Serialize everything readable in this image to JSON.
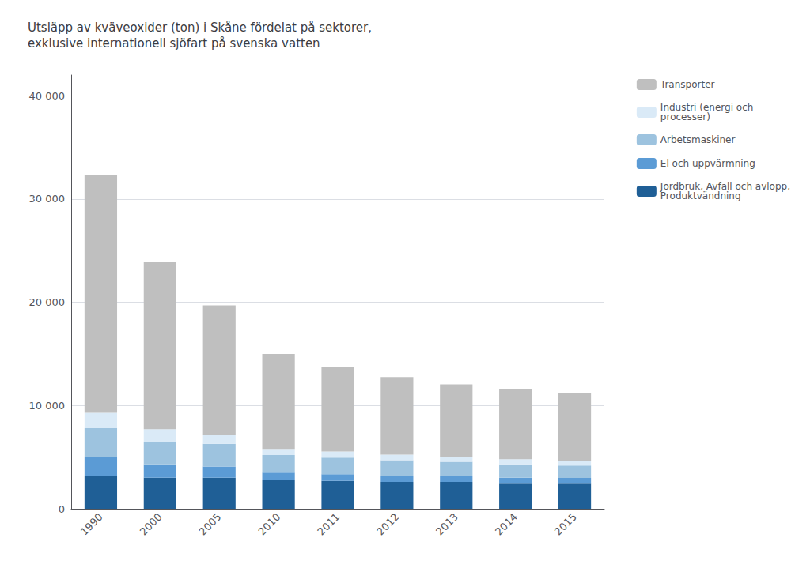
{
  "chart_data": {
    "type": "bar",
    "title": "Utsläpp av kväveoxider (ton) i Skåne fördelat på sektorer,\nexklusive internationell sjöfart på svenska vatten",
    "categories": [
      "1990",
      "2000",
      "2005",
      "2010",
      "2011",
      "2012",
      "2013",
      "2014",
      "2015"
    ],
    "series": [
      {
        "name": "Jordbruk, Avfall och avlopp,\nProduktvändning",
        "color": "#1f5f96",
        "values": [
          3200,
          3000,
          3000,
          2800,
          2700,
          2600,
          2600,
          2500,
          2500
        ]
      },
      {
        "name": "El och uppvärmning",
        "color": "#5b9bd5",
        "values": [
          1800,
          1300,
          1100,
          700,
          650,
          600,
          550,
          500,
          480
        ]
      },
      {
        "name": "Arbetsmaskiner",
        "color": "#9dc3df",
        "values": [
          2800,
          2200,
          2200,
          1700,
          1600,
          1500,
          1400,
          1300,
          1200
        ]
      },
      {
        "name": "Industri (energi och\nprocesser)",
        "color": "#daeaf7",
        "values": [
          1500,
          1200,
          900,
          600,
          600,
          550,
          500,
          500,
          480
        ]
      },
      {
        "name": "Transporter",
        "color": "#bfbfbf",
        "values": [
          23000,
          16200,
          12500,
          9200,
          8200,
          7500,
          7000,
          6800,
          6500
        ]
      }
    ],
    "stacked": true,
    "ylim": [
      0,
      42000
    ],
    "yticks": [
      0,
      {
        "value": 10000,
        "label": "10 000"
      },
      {
        "value": 20000,
        "label": "20 000"
      },
      {
        "value": 30000,
        "label": "30 000"
      },
      {
        "value": 40000,
        "label": "40 000"
      }
    ],
    "grid": true,
    "legend": "upper right"
  }
}
